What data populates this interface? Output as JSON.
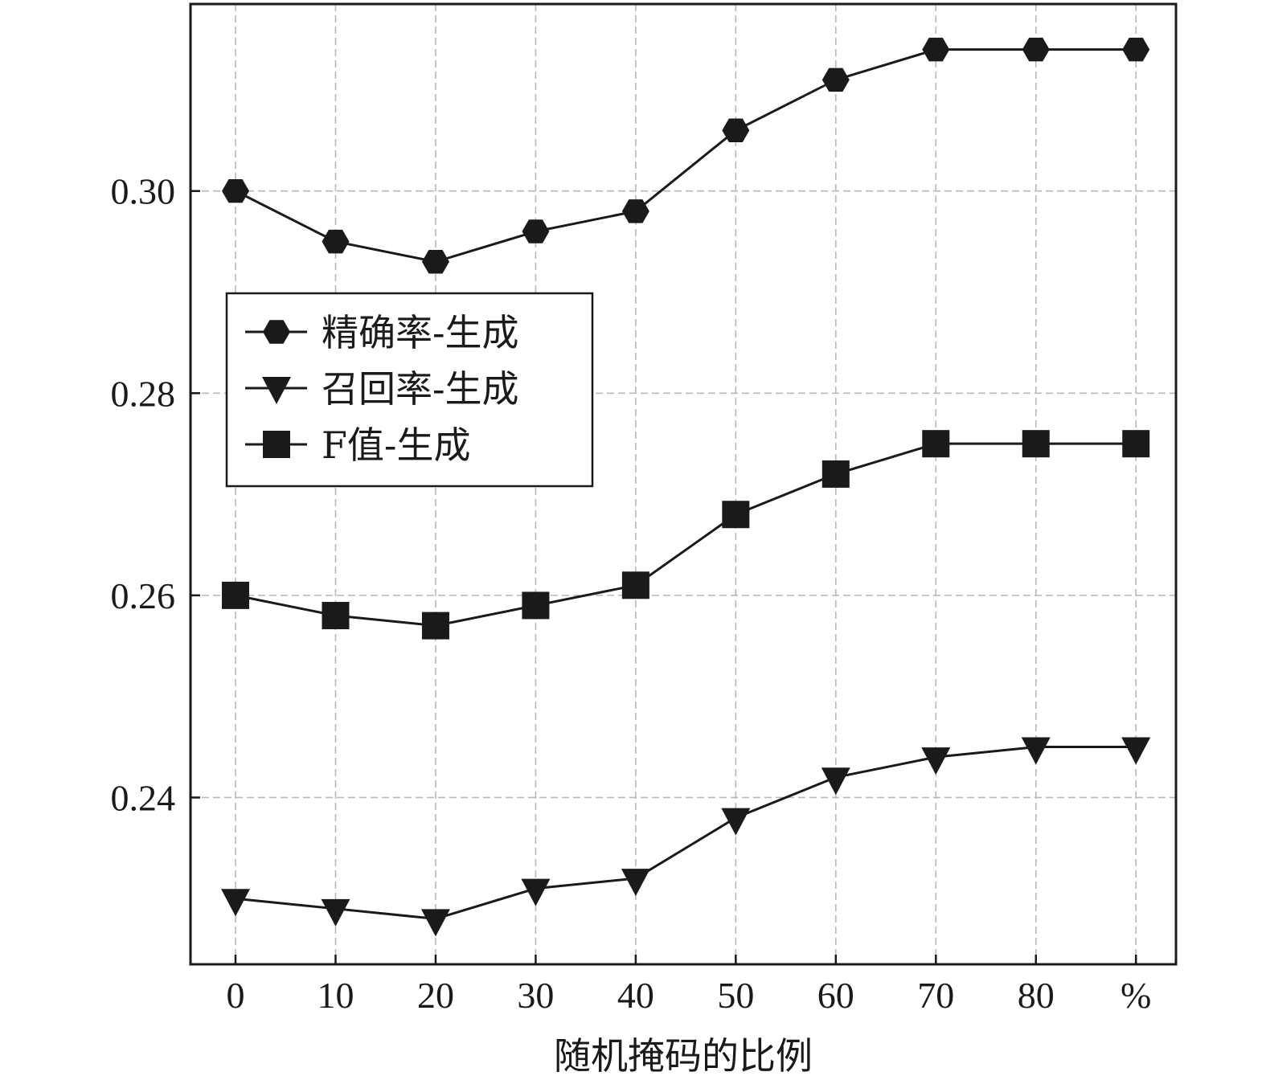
{
  "chart_data": {
    "type": "line",
    "x": [
      0,
      10,
      20,
      30,
      40,
      50,
      60,
      70,
      80,
      90
    ],
    "xticks": [
      "0",
      "10",
      "20",
      "30",
      "40",
      "50",
      "60",
      "70",
      "80",
      "%"
    ],
    "xlabel": "随机掩码的比例",
    "ylabel": "",
    "xlim": [
      -4.5,
      94
    ],
    "ylim": [
      0.2235,
      0.3185
    ],
    "yticks": [
      "0.24",
      "0.26",
      "0.28",
      "0.30"
    ],
    "grid": true,
    "legend_position": "left-center",
    "series": [
      {
        "name": "精确率-生成",
        "marker": "hexagon",
        "values": [
          0.3,
          0.295,
          0.293,
          0.296,
          0.298,
          0.306,
          0.311,
          0.314,
          0.314,
          0.314
        ]
      },
      {
        "name": "召回率-生成",
        "marker": "triangle-down",
        "values": [
          0.23,
          0.229,
          0.228,
          0.231,
          0.232,
          0.238,
          0.242,
          0.244,
          0.245,
          0.245
        ]
      },
      {
        "name": "F值-生成",
        "marker": "square",
        "values": [
          0.26,
          0.258,
          0.257,
          0.259,
          0.261,
          0.268,
          0.272,
          0.275,
          0.275,
          0.275
        ]
      }
    ]
  },
  "colors": {
    "line": "#1a1a1a",
    "grid": "#b8b8b8",
    "background": "#ffffff"
  }
}
